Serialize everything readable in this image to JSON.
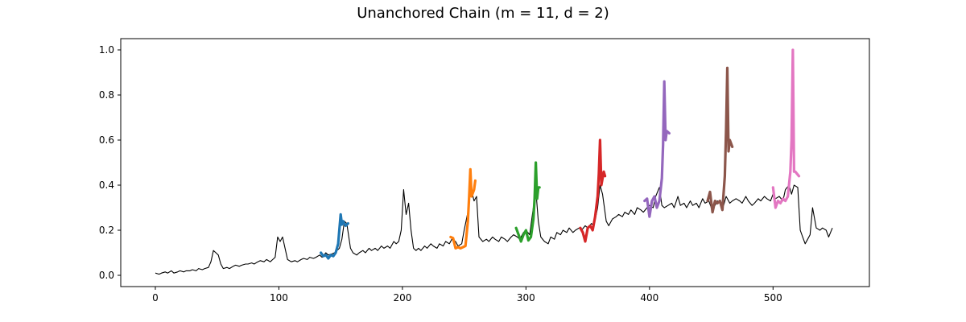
{
  "chart_data": {
    "type": "line",
    "title": "Unanchored Chain (m = 11, d = 2)",
    "xlabel": "",
    "ylabel": "",
    "xlim": [
      -28,
      578
    ],
    "ylim": [
      -0.05,
      1.05
    ],
    "x_ticks": [
      0,
      100,
      200,
      300,
      400,
      500
    ],
    "y_ticks": [
      0.0,
      0.2,
      0.4,
      0.6,
      0.8,
      1.0
    ],
    "x_tick_labels": [
      "0",
      "100",
      "200",
      "300",
      "400",
      "500"
    ],
    "y_tick_labels": [
      "0.0",
      "0.2",
      "0.4",
      "0.6",
      "0.8",
      "1.0"
    ],
    "grid": false,
    "legend": "none",
    "base_series": {
      "color": "#000000",
      "x": [
        0,
        3,
        5,
        8,
        10,
        13,
        15,
        18,
        20,
        23,
        25,
        28,
        30,
        33,
        35,
        38,
        40,
        43,
        45,
        47,
        49,
        51,
        53,
        55,
        58,
        60,
        63,
        65,
        68,
        70,
        73,
        75,
        78,
        80,
        83,
        85,
        88,
        90,
        93,
        95,
        97,
        99,
        101,
        103,
        105,
        107,
        110,
        113,
        115,
        118,
        120,
        123,
        125,
        128,
        130,
        133,
        135,
        138,
        140,
        143,
        145,
        147,
        149,
        151,
        153,
        155,
        158,
        160,
        163,
        165,
        168,
        170,
        173,
        175,
        178,
        180,
        183,
        185,
        188,
        190,
        193,
        195,
        197,
        199,
        201,
        203,
        205,
        207,
        209,
        211,
        213,
        215,
        218,
        220,
        223,
        225,
        228,
        230,
        233,
        235,
        238,
        240,
        243,
        245,
        248,
        250,
        253,
        255,
        258,
        260,
        262,
        265,
        268,
        270,
        273,
        275,
        278,
        280,
        283,
        285,
        288,
        290,
        293,
        295,
        298,
        300,
        303,
        305,
        308,
        310,
        312,
        315,
        318,
        320,
        323,
        325,
        328,
        330,
        333,
        335,
        338,
        340,
        343,
        345,
        348,
        350,
        353,
        355,
        358,
        360,
        362,
        365,
        367,
        370,
        373,
        375,
        378,
        380,
        383,
        385,
        388,
        390,
        393,
        395,
        398,
        400,
        403,
        405,
        408,
        410,
        412,
        415,
        418,
        420,
        423,
        425,
        428,
        430,
        433,
        435,
        438,
        440,
        443,
        445,
        448,
        450,
        453,
        455,
        458,
        460,
        462,
        465,
        467,
        470,
        473,
        475,
        478,
        480,
        483,
        485,
        488,
        490,
        493,
        495,
        498,
        500,
        502,
        505,
        508,
        510,
        513,
        515,
        517,
        520,
        522,
        524,
        526,
        528,
        530,
        532,
        535,
        538,
        540,
        543,
        545,
        548
      ],
      "y": [
        0.01,
        0.005,
        0.01,
        0.015,
        0.01,
        0.02,
        0.01,
        0.015,
        0.02,
        0.015,
        0.02,
        0.02,
        0.025,
        0.02,
        0.03,
        0.025,
        0.03,
        0.035,
        0.06,
        0.11,
        0.1,
        0.09,
        0.05,
        0.03,
        0.035,
        0.03,
        0.04,
        0.045,
        0.04,
        0.045,
        0.05,
        0.05,
        0.055,
        0.05,
        0.06,
        0.065,
        0.06,
        0.07,
        0.06,
        0.07,
        0.08,
        0.17,
        0.15,
        0.17,
        0.12,
        0.07,
        0.06,
        0.065,
        0.06,
        0.07,
        0.075,
        0.07,
        0.08,
        0.075,
        0.08,
        0.09,
        0.08,
        0.1,
        0.09,
        0.095,
        0.1,
        0.11,
        0.12,
        0.16,
        0.24,
        0.23,
        0.12,
        0.1,
        0.09,
        0.1,
        0.11,
        0.1,
        0.12,
        0.11,
        0.12,
        0.11,
        0.13,
        0.12,
        0.13,
        0.12,
        0.15,
        0.14,
        0.15,
        0.2,
        0.38,
        0.27,
        0.32,
        0.2,
        0.12,
        0.11,
        0.12,
        0.11,
        0.13,
        0.12,
        0.14,
        0.13,
        0.12,
        0.14,
        0.13,
        0.15,
        0.14,
        0.16,
        0.15,
        0.13,
        0.14,
        0.2,
        0.28,
        0.4,
        0.33,
        0.35,
        0.17,
        0.15,
        0.16,
        0.15,
        0.17,
        0.16,
        0.15,
        0.17,
        0.16,
        0.15,
        0.17,
        0.18,
        0.17,
        0.16,
        0.19,
        0.2,
        0.18,
        0.26,
        0.38,
        0.24,
        0.17,
        0.15,
        0.14,
        0.17,
        0.16,
        0.19,
        0.18,
        0.2,
        0.19,
        0.21,
        0.19,
        0.2,
        0.21,
        0.2,
        0.22,
        0.21,
        0.23,
        0.22,
        0.3,
        0.4,
        0.36,
        0.24,
        0.22,
        0.25,
        0.26,
        0.27,
        0.26,
        0.28,
        0.27,
        0.29,
        0.27,
        0.3,
        0.29,
        0.28,
        0.3,
        0.31,
        0.3,
        0.35,
        0.39,
        0.31,
        0.3,
        0.31,
        0.32,
        0.3,
        0.35,
        0.31,
        0.32,
        0.3,
        0.33,
        0.31,
        0.32,
        0.3,
        0.34,
        0.32,
        0.33,
        0.3,
        0.31,
        0.33,
        0.32,
        0.31,
        0.35,
        0.32,
        0.33,
        0.34,
        0.33,
        0.32,
        0.35,
        0.33,
        0.31,
        0.32,
        0.34,
        0.33,
        0.35,
        0.34,
        0.33,
        0.36,
        0.34,
        0.35,
        0.33,
        0.38,
        0.4,
        0.36,
        0.4,
        0.39,
        0.2,
        0.17,
        0.14,
        0.16,
        0.18,
        0.3,
        0.21,
        0.2,
        0.21,
        0.2,
        0.17,
        0.21
      ]
    },
    "series": [
      {
        "color": "#1f77b4",
        "x": [
          134,
          136,
          138,
          140,
          142,
          144,
          146,
          148,
          150,
          151,
          152,
          154,
          156
        ],
        "y": [
          0.1,
          0.085,
          0.09,
          0.075,
          0.09,
          0.085,
          0.1,
          0.14,
          0.27,
          0.225,
          0.24,
          0.22,
          0.23
        ]
      },
      {
        "color": "#ff7f0e",
        "x": [
          239,
          241,
          243,
          245,
          247,
          249,
          251,
          253,
          254,
          255,
          256,
          258,
          259
        ],
        "y": [
          0.17,
          0.165,
          0.12,
          0.125,
          0.12,
          0.125,
          0.13,
          0.24,
          0.35,
          0.47,
          0.35,
          0.38,
          0.42
        ]
      },
      {
        "color": "#2ca02c",
        "x": [
          292,
          294,
          296,
          298,
          300,
          302,
          304,
          306,
          307,
          308,
          309,
          310,
          311
        ],
        "y": [
          0.21,
          0.18,
          0.15,
          0.18,
          0.2,
          0.155,
          0.17,
          0.25,
          0.34,
          0.5,
          0.34,
          0.39,
          0.39
        ]
      },
      {
        "color": "#d62728",
        "x": [
          344,
          346,
          348,
          350,
          352,
          354,
          356,
          358,
          359,
          360,
          361,
          363,
          364
        ],
        "y": [
          0.21,
          0.19,
          0.15,
          0.21,
          0.22,
          0.2,
          0.26,
          0.35,
          0.45,
          0.6,
          0.4,
          0.46,
          0.44
        ]
      },
      {
        "color": "#9467bd",
        "x": [
          396,
          398,
          400,
          402,
          404,
          406,
          408,
          410,
          411,
          412,
          413,
          414,
          416
        ],
        "y": [
          0.33,
          0.34,
          0.26,
          0.33,
          0.35,
          0.3,
          0.33,
          0.43,
          0.58,
          0.86,
          0.6,
          0.64,
          0.63
        ]
      },
      {
        "color": "#8c564b",
        "x": [
          447,
          449,
          451,
          453,
          455,
          457,
          459,
          461,
          462,
          463,
          464,
          465,
          467
        ],
        "y": [
          0.33,
          0.37,
          0.28,
          0.33,
          0.32,
          0.33,
          0.29,
          0.44,
          0.65,
          0.92,
          0.55,
          0.6,
          0.57
        ]
      },
      {
        "color": "#e377c2",
        "x": [
          500,
          502,
          504,
          506,
          508,
          510,
          512,
          514,
          515,
          516,
          517,
          518,
          521
        ],
        "y": [
          0.39,
          0.3,
          0.33,
          0.32,
          0.34,
          0.33,
          0.35,
          0.46,
          0.6,
          1.0,
          0.46,
          0.46,
          0.44
        ]
      }
    ]
  }
}
